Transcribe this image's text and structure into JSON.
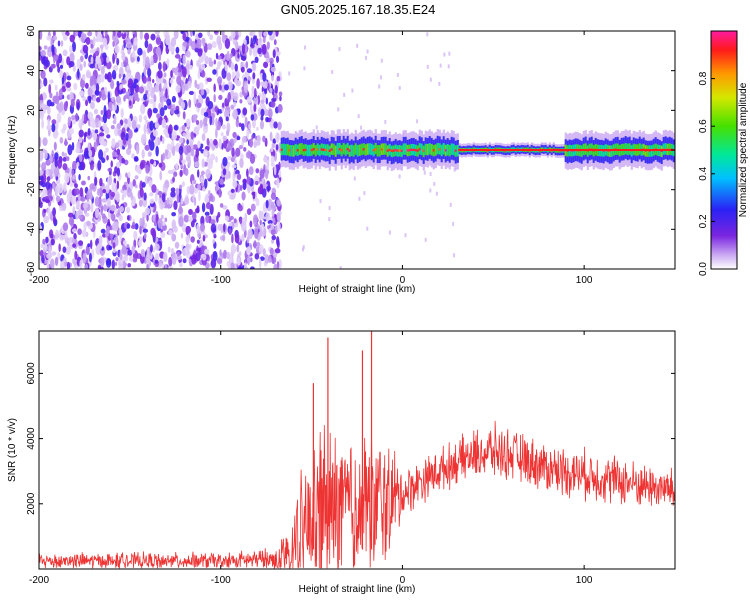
{
  "title": "GN05.2025.167.18.35.E24",
  "chart_data": [
    {
      "type": "heatmap",
      "title": "GN05.2025.167.18.35.E24",
      "xlabel": "Height of straight line (km)",
      "ylabel": "Frequency (Hz)",
      "xlim": [
        -200,
        150
      ],
      "ylim": [
        -60,
        60
      ],
      "x_ticks": [
        -200,
        -100,
        0,
        100
      ],
      "y_ticks": [
        -60,
        -40,
        -20,
        0,
        20,
        40,
        60
      ],
      "colorbar": {
        "label": "Normalized spectral amplitude",
        "range": [
          0.0,
          1.0
        ],
        "ticks": [
          0.0,
          0.2,
          0.4,
          0.6,
          0.8
        ],
        "colormap": "rainbow (white-violet-blue-cyan-green-yellow-red-magenta)"
      },
      "features": [
        {
          "name": "broadband noise",
          "x_range": [
            -200,
            -67
          ],
          "freq_range": [
            -60,
            60
          ],
          "amplitude": "low (0.05-0.25)"
        },
        {
          "name": "narrow tone near 0 Hz",
          "x_range": [
            -67,
            150
          ],
          "freq_center": 0,
          "freq_halfwidth": 3,
          "peak_amplitude": 1.0
        }
      ],
      "grid": false
    },
    {
      "type": "line",
      "xlabel": "Height of straight line (km)",
      "ylabel": "SNR (10 * v/v)",
      "xlim": [
        -200,
        150
      ],
      "ylim": [
        0,
        7300
      ],
      "x_ticks": [
        -200,
        -100,
        0,
        100
      ],
      "y_ticks": [
        2000,
        4000,
        6000
      ],
      "series_color": "#ee3333",
      "envelope": {
        "x": [
          -200,
          -150,
          -100,
          -70,
          -62,
          -55,
          -45,
          -35,
          -25,
          -15,
          -5,
          0,
          10,
          20,
          30,
          40,
          50,
          60,
          70,
          80,
          90,
          100,
          110,
          120,
          130,
          140,
          150
        ],
        "baseline": [
          250,
          250,
          250,
          300,
          600,
          1200,
          1600,
          1800,
          1900,
          2000,
          2100,
          2300,
          2700,
          3000,
          3300,
          3500,
          3600,
          3500,
          3300,
          3100,
          3000,
          2900,
          2800,
          2700,
          2600,
          2500,
          2400
        ],
        "amplitude": [
          300,
          300,
          300,
          400,
          1200,
          2200,
          3200,
          3000,
          2800,
          2800,
          2000,
          900,
          800,
          800,
          800,
          900,
          1000,
          900,
          900,
          900,
          900,
          900,
          900,
          900,
          800,
          800,
          800
        ]
      },
      "peaks": [
        {
          "x": -41,
          "y": 7100
        },
        {
          "x": -17,
          "y": 7300
        },
        {
          "x": -22,
          "y": 6700
        },
        {
          "x": -49,
          "y": 5700
        }
      ],
      "grid": false
    }
  ]
}
